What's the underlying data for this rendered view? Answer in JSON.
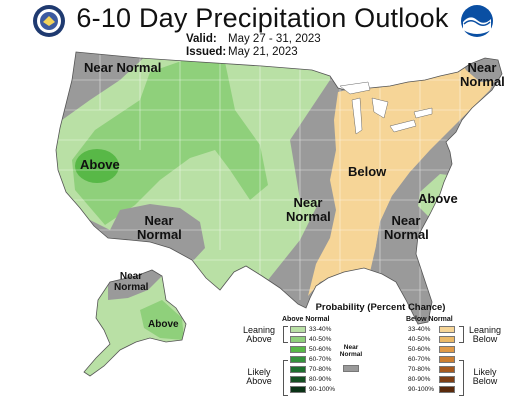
{
  "header": {
    "title": "6-10 Day Precipitation Outlook",
    "valid_label": "Valid:",
    "valid_dates": "May 27 - 31, 2023",
    "issued_label": "Issued:",
    "issued_date": "May 21, 2023"
  },
  "logos": {
    "left": "doc-seal-icon",
    "right": "noaa-logo-icon"
  },
  "map_labels": {
    "nw": "Near Normal",
    "ne": "Near Normal",
    "ca": "Above",
    "sw": "Near Normal",
    "central": "Near Normal",
    "east": "Below",
    "se": "Near Normal",
    "nc": "Above",
    "ak_near": "Near Normal",
    "ak_above": "Above"
  },
  "legend": {
    "title": "Probability (Percent Chance)",
    "above_header": "Above Normal",
    "below_header": "Below Normal",
    "near_label": "Near Normal",
    "leaning_above": "Leaning Above",
    "likely_above": "Likely Above",
    "leaning_below": "Leaning Below",
    "likely_below": "Likely Below",
    "above_ranges": [
      "33-40%",
      "40-50%",
      "50-60%",
      "60-70%",
      "70-80%",
      "80-90%",
      "90-100%"
    ],
    "below_ranges": [
      "33-40%",
      "40-50%",
      "50-60%",
      "60-70%",
      "70-80%",
      "80-90%",
      "90-100%"
    ]
  },
  "colors": {
    "near_normal": "#9a9a9a",
    "above": [
      "#b9e0a5",
      "#8fd07b",
      "#58b847",
      "#35923c",
      "#1e6e2e",
      "#154f22",
      "#0b3216"
    ],
    "below": [
      "#f6d597",
      "#ebb968",
      "#e09a48",
      "#cc7f32",
      "#a65a1f",
      "#7e3f15",
      "#5a2a0c"
    ]
  }
}
